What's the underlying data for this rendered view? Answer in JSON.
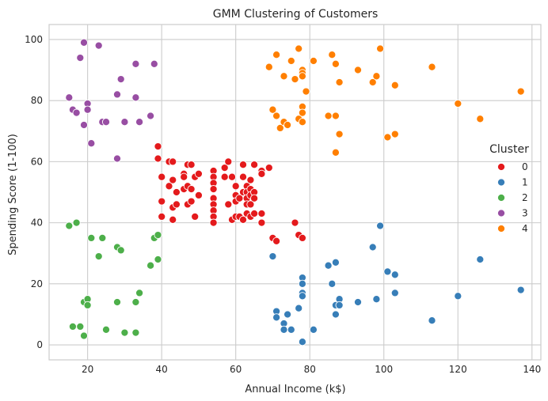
{
  "chart_data": {
    "type": "scatter",
    "title": "GMM Clustering of Customers",
    "xlabel": "Annual Income (k$)",
    "ylabel": "Spending Score (1-100)",
    "xlim": [
      9.6,
      142.4
    ],
    "ylim": [
      -4.9,
      104.9
    ],
    "xticks": [
      20,
      40,
      60,
      80,
      100,
      120,
      140
    ],
    "yticks": [
      0,
      20,
      40,
      60,
      80,
      100
    ],
    "grid": true,
    "legend": {
      "title": "Cluster",
      "placement": "right",
      "entries": [
        "0",
        "1",
        "2",
        "3",
        "4"
      ]
    },
    "colors": [
      "#e41a1c",
      "#377eb8",
      "#4daf4a",
      "#984ea3",
      "#ff7f00"
    ],
    "series": [
      {
        "name": "0",
        "points": [
          [
            39,
            65
          ],
          [
            39,
            61
          ],
          [
            40,
            55
          ],
          [
            40,
            47
          ],
          [
            40,
            42
          ],
          [
            42,
            60
          ],
          [
            42,
            52
          ],
          [
            43,
            60
          ],
          [
            43,
            54
          ],
          [
            43,
            45
          ],
          [
            43,
            41
          ],
          [
            44,
            50
          ],
          [
            44,
            46
          ],
          [
            46,
            56
          ],
          [
            46,
            55
          ],
          [
            46,
            51
          ],
          [
            47,
            59
          ],
          [
            47,
            52
          ],
          [
            47,
            46
          ],
          [
            48,
            59
          ],
          [
            48,
            51
          ],
          [
            48,
            47
          ],
          [
            49,
            55
          ],
          [
            49,
            42
          ],
          [
            50,
            56
          ],
          [
            50,
            49
          ],
          [
            54,
            57
          ],
          [
            54,
            55
          ],
          [
            54,
            53
          ],
          [
            54,
            51
          ],
          [
            54,
            48
          ],
          [
            54,
            46
          ],
          [
            54,
            44
          ],
          [
            54,
            42
          ],
          [
            54,
            40
          ],
          [
            57,
            58
          ],
          [
            57,
            55
          ],
          [
            58,
            60
          ],
          [
            58,
            46
          ],
          [
            59,
            55
          ],
          [
            59,
            41
          ],
          [
            60,
            52
          ],
          [
            60,
            49
          ],
          [
            60,
            47
          ],
          [
            60,
            42
          ],
          [
            61,
            48
          ],
          [
            61,
            42
          ],
          [
            62,
            59
          ],
          [
            62,
            55
          ],
          [
            62,
            50
          ],
          [
            62,
            41
          ],
          [
            63,
            52
          ],
          [
            63,
            50
          ],
          [
            63,
            48
          ],
          [
            63,
            46
          ],
          [
            63,
            43
          ],
          [
            64,
            54
          ],
          [
            64,
            51
          ],
          [
            64,
            49
          ],
          [
            64,
            46
          ],
          [
            64,
            42
          ],
          [
            65,
            59
          ],
          [
            65,
            50
          ],
          [
            65,
            48
          ],
          [
            65,
            43
          ],
          [
            67,
            57
          ],
          [
            67,
            56
          ],
          [
            67,
            43
          ],
          [
            67,
            40
          ],
          [
            69,
            58
          ],
          [
            70,
            35
          ],
          [
            71,
            34
          ],
          [
            76,
            40
          ],
          [
            77,
            36
          ],
          [
            78,
            35
          ]
        ]
      },
      {
        "name": "1",
        "points": [
          [
            70,
            29
          ],
          [
            71,
            11
          ],
          [
            71,
            9
          ],
          [
            73,
            7
          ],
          [
            73,
            5
          ],
          [
            74,
            10
          ],
          [
            75,
            5
          ],
          [
            77,
            12
          ],
          [
            78,
            22
          ],
          [
            78,
            20
          ],
          [
            78,
            17
          ],
          [
            78,
            16
          ],
          [
            78,
            1
          ],
          [
            81,
            5
          ],
          [
            85,
            26
          ],
          [
            86,
            20
          ],
          [
            87,
            27
          ],
          [
            87,
            13
          ],
          [
            87,
            10
          ],
          [
            88,
            15
          ],
          [
            88,
            13
          ],
          [
            93,
            14
          ],
          [
            97,
            32
          ],
          [
            98,
            15
          ],
          [
            99,
            39
          ],
          [
            101,
            24
          ],
          [
            103,
            23
          ],
          [
            103,
            17
          ],
          [
            113,
            8
          ],
          [
            120,
            16
          ],
          [
            126,
            28
          ],
          [
            137,
            18
          ]
        ]
      },
      {
        "name": "2",
        "points": [
          [
            15,
            39
          ],
          [
            16,
            6
          ],
          [
            17,
            40
          ],
          [
            18,
            6
          ],
          [
            19,
            14
          ],
          [
            19,
            3
          ],
          [
            20,
            15
          ],
          [
            20,
            13
          ],
          [
            21,
            35
          ],
          [
            23,
            29
          ],
          [
            24,
            35
          ],
          [
            25,
            5
          ],
          [
            28,
            32
          ],
          [
            28,
            14
          ],
          [
            29,
            31
          ],
          [
            30,
            4
          ],
          [
            33,
            14
          ],
          [
            33,
            4
          ],
          [
            34,
            17
          ],
          [
            37,
            26
          ],
          [
            38,
            35
          ],
          [
            39,
            36
          ],
          [
            39,
            28
          ]
        ]
      },
      {
        "name": "3",
        "points": [
          [
            15,
            81
          ],
          [
            16,
            77
          ],
          [
            17,
            76
          ],
          [
            18,
            94
          ],
          [
            19,
            99
          ],
          [
            19,
            72
          ],
          [
            20,
            79
          ],
          [
            20,
            77
          ],
          [
            21,
            66
          ],
          [
            23,
            98
          ],
          [
            24,
            73
          ],
          [
            25,
            73
          ],
          [
            28,
            82
          ],
          [
            28,
            61
          ],
          [
            29,
            87
          ],
          [
            30,
            73
          ],
          [
            33,
            92
          ],
          [
            33,
            81
          ],
          [
            34,
            73
          ],
          [
            37,
            75
          ],
          [
            38,
            92
          ]
        ]
      },
      {
        "name": "4",
        "points": [
          [
            69,
            91
          ],
          [
            70,
            77
          ],
          [
            71,
            95
          ],
          [
            71,
            75
          ],
          [
            72,
            71
          ],
          [
            73,
            88
          ],
          [
            73,
            73
          ],
          [
            74,
            72
          ],
          [
            75,
            93
          ],
          [
            76,
            87
          ],
          [
            77,
            97
          ],
          [
            77,
            74
          ],
          [
            78,
            90
          ],
          [
            78,
            89
          ],
          [
            78,
            88
          ],
          [
            78,
            78
          ],
          [
            78,
            76
          ],
          [
            78,
            73
          ],
          [
            79,
            83
          ],
          [
            81,
            93
          ],
          [
            85,
            75
          ],
          [
            86,
            95
          ],
          [
            87,
            92
          ],
          [
            87,
            75
          ],
          [
            87,
            63
          ],
          [
            88,
            86
          ],
          [
            88,
            69
          ],
          [
            93,
            90
          ],
          [
            97,
            86
          ],
          [
            98,
            88
          ],
          [
            99,
            97
          ],
          [
            101,
            68
          ],
          [
            103,
            85
          ],
          [
            103,
            69
          ],
          [
            113,
            91
          ],
          [
            120,
            79
          ],
          [
            126,
            74
          ],
          [
            137,
            83
          ]
        ]
      }
    ]
  }
}
